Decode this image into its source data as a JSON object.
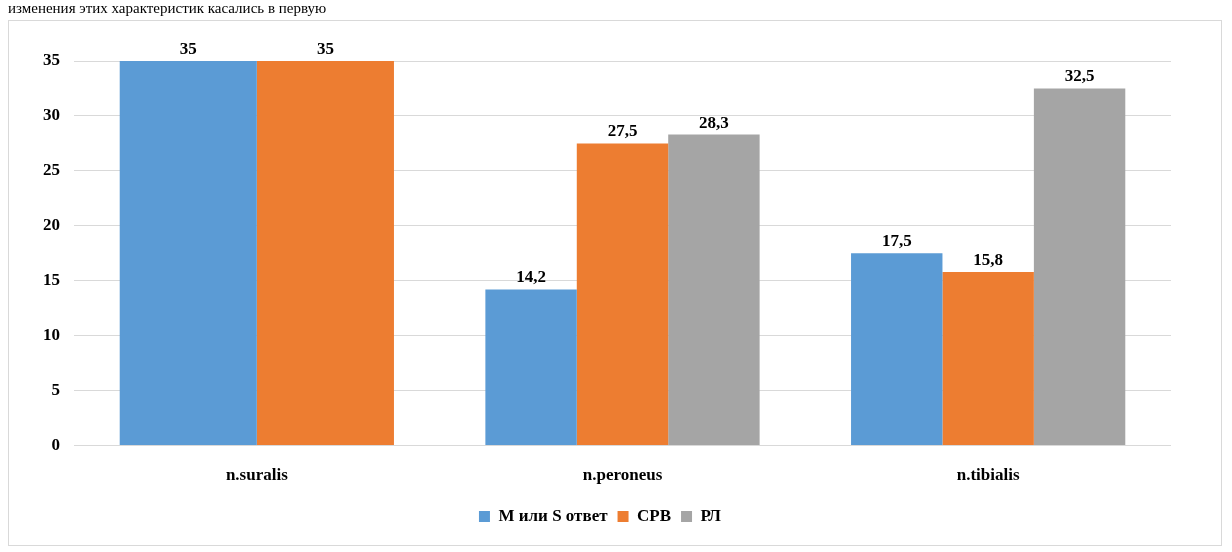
{
  "chart_data": {
    "type": "bar",
    "categories": [
      "n.suralis",
      "n.peroneus",
      "n.tibialis"
    ],
    "series": [
      {
        "name": "М или S ответ",
        "color": "#5b9bd5",
        "values": [
          35,
          14.2,
          17.5
        ],
        "value_labels": [
          "35",
          "14,2",
          "17,5"
        ]
      },
      {
        "name": "СРВ",
        "color": "#ed7d31",
        "values": [
          35,
          27.5,
          15.8
        ],
        "value_labels": [
          "35",
          "27,5",
          "15,8"
        ]
      },
      {
        "name": "РЛ",
        "color": "#a5a5a5",
        "values": [
          null,
          28.3,
          32.5
        ],
        "value_labels": [
          null,
          "28,3",
          "32,5"
        ]
      }
    ],
    "ylim": [
      0,
      35
    ],
    "yticks": [
      0,
      5,
      10,
      15,
      20,
      25,
      30,
      35
    ],
    "grid": "y",
    "legend": "bottom",
    "annotations": [
      "изменения этих характеристик касались в первую"
    ]
  }
}
